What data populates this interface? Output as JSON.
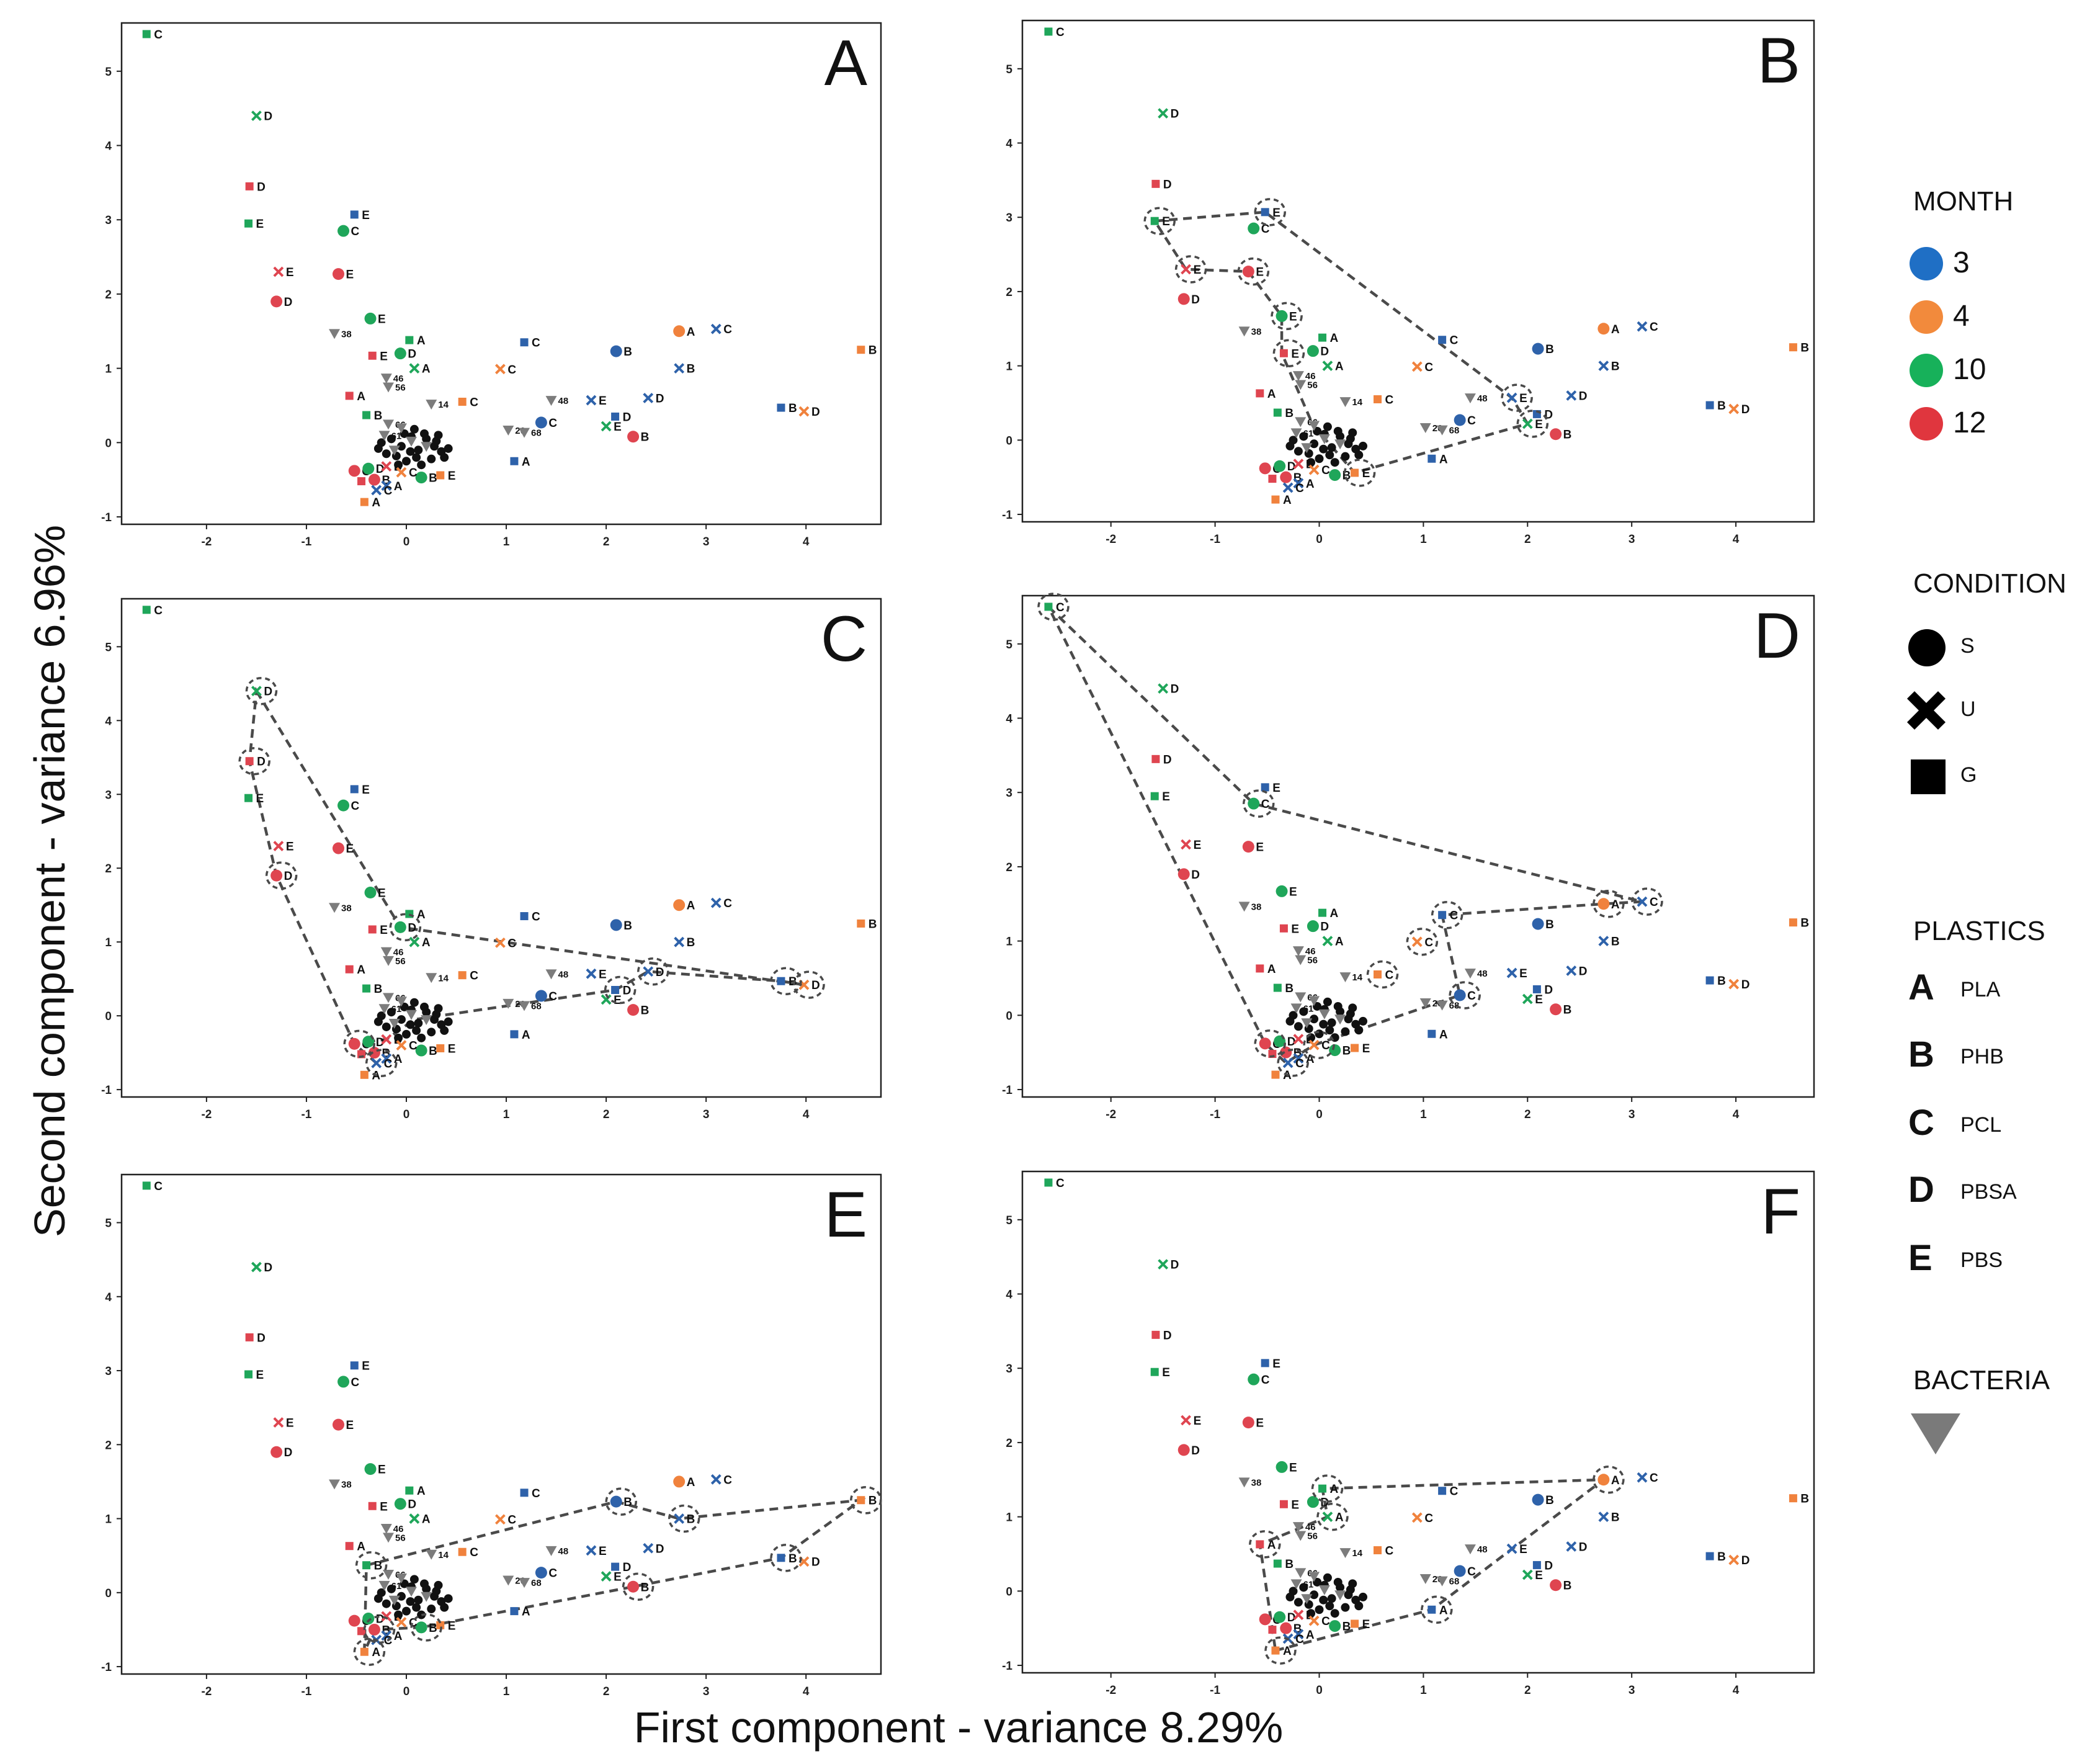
{
  "figure": {
    "xlabel": "First component - variance 8.29%",
    "ylabel": "Second component - variance 6.96%"
  },
  "colors": {
    "month_3": "#1f6fc5",
    "month_4": "#f28a3c",
    "month_10": "#17b15a",
    "month_12": "#e0363e",
    "pt_blue": "#2e62aa",
    "pt_orange": "#f0823d",
    "pt_green": "#1fa65a",
    "pt_red": "#df4550",
    "bacteria": "#7c7c7c",
    "hull": "#4a4a4a"
  },
  "legend": {
    "month_title": "MONTH",
    "months": [
      {
        "label": "3",
        "color": "#1f6fc5"
      },
      {
        "label": "4",
        "color": "#f28a3c"
      },
      {
        "label": "10",
        "color": "#17b15a"
      },
      {
        "label": "12",
        "color": "#e0363e"
      }
    ],
    "condition_title": "CONDITION",
    "conditions": [
      {
        "symbol": "circle",
        "label": "S"
      },
      {
        "symbol": "cross",
        "label": "U"
      },
      {
        "symbol": "square",
        "label": "G"
      }
    ],
    "plastics_title": "PLASTICS",
    "plastics": [
      {
        "letter": "A",
        "label": "PLA"
      },
      {
        "letter": "B",
        "label": "PHB"
      },
      {
        "letter": "C",
        "label": "PCL"
      },
      {
        "letter": "D",
        "label": "PBSA"
      },
      {
        "letter": "E",
        "label": "PBS"
      }
    ],
    "bacteria_title": "BACTERIA",
    "bacteria_icon": "triangle-down-icon"
  },
  "chart_data": {
    "type": "scatter",
    "panel_labels": [
      "A",
      "B",
      "C",
      "D",
      "E",
      "F"
    ],
    "xlim": [
      -2.85,
      4.75
    ],
    "ylim": [
      -1.1,
      5.65
    ],
    "xticks": [
      -2,
      -1,
      0,
      1,
      2,
      3,
      4
    ],
    "yticks": [
      -1,
      0,
      1,
      2,
      3,
      4,
      5
    ],
    "points": [
      {
        "x": -2.6,
        "y": 5.5,
        "month": 10,
        "cond": "G",
        "label": "C"
      },
      {
        "x": -1.5,
        "y": 4.4,
        "month": 10,
        "cond": "U",
        "label": "D"
      },
      {
        "x": -1.57,
        "y": 3.45,
        "month": 12,
        "cond": "G",
        "label": "D"
      },
      {
        "x": -1.58,
        "y": 2.95,
        "month": 10,
        "cond": "G",
        "label": "E"
      },
      {
        "x": -1.28,
        "y": 2.3,
        "month": 12,
        "cond": "U",
        "label": "E"
      },
      {
        "x": -1.3,
        "y": 1.9,
        "month": 12,
        "cond": "S",
        "label": "D"
      },
      {
        "x": -0.52,
        "y": 3.07,
        "month": 3,
        "cond": "G",
        "label": "E"
      },
      {
        "x": -0.63,
        "y": 2.85,
        "month": 10,
        "cond": "S",
        "label": "C"
      },
      {
        "x": -0.68,
        "y": 2.27,
        "month": 12,
        "cond": "S",
        "label": "E"
      },
      {
        "x": -0.36,
        "y": 1.67,
        "month": 10,
        "cond": "S",
        "label": "E"
      },
      {
        "x": 0.03,
        "y": 1.38,
        "month": 10,
        "cond": "G",
        "label": "A"
      },
      {
        "x": -0.06,
        "y": 1.2,
        "month": 10,
        "cond": "S",
        "label": "D"
      },
      {
        "x": -0.34,
        "y": 1.17,
        "month": 12,
        "cond": "G",
        "label": "E"
      },
      {
        "x": 0.08,
        "y": 1.0,
        "month": 10,
        "cond": "U",
        "label": "A"
      },
      {
        "x": -0.57,
        "y": 0.63,
        "month": 12,
        "cond": "G",
        "label": "A"
      },
      {
        "x": -0.4,
        "y": 0.37,
        "month": 10,
        "cond": "G",
        "label": "B"
      },
      {
        "x": 1.18,
        "y": 1.35,
        "month": 3,
        "cond": "G",
        "label": "C"
      },
      {
        "x": 0.94,
        "y": 0.99,
        "month": 4,
        "cond": "U",
        "label": "C"
      },
      {
        "x": 0.56,
        "y": 0.55,
        "month": 4,
        "cond": "G",
        "label": "C"
      },
      {
        "x": 2.1,
        "y": 1.23,
        "month": 3,
        "cond": "S",
        "label": "B"
      },
      {
        "x": 2.73,
        "y": 1.5,
        "month": 4,
        "cond": "S",
        "label": "A"
      },
      {
        "x": 3.1,
        "y": 1.53,
        "month": 3,
        "cond": "U",
        "label": "C"
      },
      {
        "x": 2.73,
        "y": 1.0,
        "month": 3,
        "cond": "U",
        "label": "B"
      },
      {
        "x": 4.55,
        "y": 1.25,
        "month": 4,
        "cond": "G",
        "label": "B"
      },
      {
        "x": 1.85,
        "y": 0.57,
        "month": 3,
        "cond": "U",
        "label": "E"
      },
      {
        "x": 2.42,
        "y": 0.6,
        "month": 3,
        "cond": "U",
        "label": "D"
      },
      {
        "x": 3.75,
        "y": 0.47,
        "month": 3,
        "cond": "G",
        "label": "B"
      },
      {
        "x": 3.98,
        "y": 0.42,
        "month": 4,
        "cond": "U",
        "label": "D"
      },
      {
        "x": 1.35,
        "y": 0.27,
        "month": 3,
        "cond": "S",
        "label": "C"
      },
      {
        "x": 2.09,
        "y": 0.35,
        "month": 3,
        "cond": "G",
        "label": "D"
      },
      {
        "x": 2.0,
        "y": 0.22,
        "month": 10,
        "cond": "U",
        "label": "E"
      },
      {
        "x": 2.27,
        "y": 0.08,
        "month": 12,
        "cond": "S",
        "label": "B"
      },
      {
        "x": 1.08,
        "y": -0.25,
        "month": 3,
        "cond": "G",
        "label": "A"
      },
      {
        "x": 0.15,
        "y": -0.47,
        "month": 10,
        "cond": "S",
        "label": "B"
      },
      {
        "x": 0.34,
        "y": -0.44,
        "month": 4,
        "cond": "G",
        "label": "E"
      },
      {
        "x": -0.52,
        "y": -0.38,
        "month": 12,
        "cond": "S",
        "label": "C"
      },
      {
        "x": -0.38,
        "y": -0.35,
        "month": 10,
        "cond": "S",
        "label": "D"
      },
      {
        "x": -0.2,
        "y": -0.32,
        "month": 12,
        "cond": "U",
        "label": "D"
      },
      {
        "x": -0.05,
        "y": -0.4,
        "month": 4,
        "cond": "U",
        "label": "C"
      },
      {
        "x": -0.45,
        "y": -0.52,
        "month": 12,
        "cond": "G",
        "label": ""
      },
      {
        "x": -0.32,
        "y": -0.5,
        "month": 12,
        "cond": "S",
        "label": "B"
      },
      {
        "x": -0.2,
        "y": -0.58,
        "month": 3,
        "cond": "U",
        "label": "A"
      },
      {
        "x": -0.3,
        "y": -0.64,
        "month": 3,
        "cond": "U",
        "label": "C"
      },
      {
        "x": -0.42,
        "y": -0.8,
        "month": 4,
        "cond": "G",
        "label": "A"
      }
    ],
    "bacteria": [
      {
        "x": -0.72,
        "y": 1.47,
        "label": "38"
      },
      {
        "x": -0.2,
        "y": 0.87,
        "label": "46"
      },
      {
        "x": -0.18,
        "y": 0.75,
        "label": "56"
      },
      {
        "x": 0.25,
        "y": 0.52,
        "label": "14"
      },
      {
        "x": 1.45,
        "y": 0.57,
        "label": "48"
      },
      {
        "x": 1.02,
        "y": 0.17,
        "label": "20"
      },
      {
        "x": 1.18,
        "y": 0.14,
        "label": "68"
      },
      {
        "x": -0.18,
        "y": 0.25,
        "label": "66"
      },
      {
        "x": -0.22,
        "y": 0.1,
        "label": "61"
      },
      {
        "x": -0.05,
        "y": 0.2,
        "label": ""
      },
      {
        "x": 0.05,
        "y": 0.02,
        "label": ""
      },
      {
        "x": 0.2,
        "y": -0.05,
        "label": ""
      },
      {
        "x": -0.12,
        "y": -0.1,
        "label": ""
      }
    ],
    "cluster": [
      [
        -0.25,
        0.0
      ],
      [
        -0.15,
        0.05
      ],
      [
        -0.05,
        -0.05
      ],
      [
        0.05,
        0.08
      ],
      [
        0.12,
        -0.1
      ],
      [
        0.2,
        0.05
      ],
      [
        0.28,
        -0.05
      ],
      [
        0.35,
        -0.12
      ],
      [
        -0.1,
        -0.18
      ],
      [
        0.0,
        -0.25
      ],
      [
        0.1,
        -0.2
      ],
      [
        -0.2,
        -0.15
      ],
      [
        0.18,
        0.12
      ],
      [
        0.3,
        0.02
      ],
      [
        0.38,
        -0.2
      ],
      [
        -0.02,
        0.12
      ],
      [
        0.08,
        0.18
      ],
      [
        0.25,
        -0.22
      ],
      [
        -0.28,
        -0.08
      ],
      [
        0.15,
        -0.3
      ],
      [
        0.42,
        -0.08
      ],
      [
        -0.08,
        -0.3
      ],
      [
        0.32,
        0.1
      ],
      [
        0.04,
        -0.12
      ]
    ],
    "cluster_labels": [
      {
        "x": 0.1,
        "y": -0.16,
        "label": "B"
      },
      {
        "x": 0.38,
        "y": -0.12,
        "label": "B"
      }
    ],
    "hulls": {
      "A": [],
      "B": [
        [
          -1.58,
          2.95
        ],
        [
          -0.52,
          3.07
        ],
        [
          1.85,
          0.57
        ],
        [
          2.0,
          0.22
        ],
        [
          0.34,
          -0.44
        ],
        [
          -0.06,
          0.2
        ],
        [
          -0.36,
          1.17
        ],
        [
          -0.36,
          1.67
        ],
        [
          -0.68,
          2.27
        ],
        [
          -1.28,
          2.3
        ]
      ],
      "C": [
        [
          -1.5,
          4.4
        ],
        [
          -0.06,
          1.2
        ],
        [
          3.98,
          0.42
        ],
        [
          3.75,
          0.47
        ],
        [
          2.42,
          0.6
        ],
        [
          2.09,
          0.35
        ],
        [
          0.08,
          -0.05
        ],
        [
          -0.2,
          -0.32
        ],
        [
          -0.38,
          -0.35
        ],
        [
          -0.3,
          -0.64
        ],
        [
          -0.52,
          -0.38
        ],
        [
          -1.3,
          1.9
        ],
        [
          -1.57,
          3.45
        ]
      ],
      "D": [
        [
          -2.6,
          5.5
        ],
        [
          -0.63,
          2.85
        ],
        [
          3.1,
          1.53
        ],
        [
          2.73,
          1.5
        ],
        [
          1.18,
          1.35
        ],
        [
          1.35,
          0.27
        ],
        [
          -0.05,
          -0.4
        ],
        [
          -0.32,
          -0.64
        ],
        [
          -0.52,
          -0.38
        ]
      ],
      "E": [
        [
          -0.4,
          0.37
        ],
        [
          2.1,
          1.23
        ],
        [
          2.73,
          1.0
        ],
        [
          4.55,
          1.25
        ],
        [
          3.75,
          0.47
        ],
        [
          2.27,
          0.08
        ],
        [
          0.15,
          -0.47
        ],
        [
          -0.32,
          -0.5
        ],
        [
          -0.42,
          -0.8
        ]
      ],
      "F": [
        [
          -0.42,
          -0.8
        ],
        [
          1.08,
          -0.25
        ],
        [
          2.73,
          1.5
        ],
        [
          0.03,
          1.38
        ],
        [
          0.08,
          1.0
        ],
        [
          -0.57,
          0.63
        ]
      ]
    },
    "circled": {
      "A": [],
      "B": [
        [
          -1.58,
          2.95
        ],
        [
          -0.52,
          3.07
        ],
        [
          -1.28,
          2.3
        ],
        [
          -0.68,
          2.27
        ],
        [
          -0.36,
          1.67
        ],
        [
          -0.34,
          1.17
        ],
        [
          1.85,
          0.57
        ],
        [
          2.0,
          0.22
        ],
        [
          0.34,
          -0.44
        ]
      ],
      "C": [
        [
          -1.5,
          4.4
        ],
        [
          -1.57,
          3.45
        ],
        [
          -1.3,
          1.9
        ],
        [
          -0.06,
          1.2
        ],
        [
          2.42,
          0.6
        ],
        [
          2.09,
          0.35
        ],
        [
          3.98,
          0.42
        ],
        [
          3.75,
          0.47
        ],
        [
          -0.52,
          -0.38
        ],
        [
          -0.3,
          -0.64
        ]
      ],
      "D": [
        [
          -2.6,
          5.5
        ],
        [
          -0.63,
          2.85
        ],
        [
          3.1,
          1.53
        ],
        [
          2.73,
          1.5
        ],
        [
          1.18,
          1.35
        ],
        [
          0.94,
          0.99
        ],
        [
          0.56,
          0.55
        ],
        [
          1.35,
          0.27
        ],
        [
          -0.52,
          -0.38
        ],
        [
          -0.3,
          -0.64
        ],
        [
          -0.05,
          -0.4
        ]
      ],
      "E": [
        [
          -0.4,
          0.37
        ],
        [
          2.1,
          1.23
        ],
        [
          2.73,
          1.0
        ],
        [
          4.55,
          1.25
        ],
        [
          3.75,
          0.47
        ],
        [
          2.27,
          0.08
        ],
        [
          0.15,
          -0.47
        ],
        [
          -0.42,
          -0.8
        ],
        [
          -0.32,
          -0.5
        ]
      ],
      "F": [
        [
          0.03,
          1.38
        ],
        [
          0.08,
          1.0
        ],
        [
          -0.57,
          0.63
        ],
        [
          1.08,
          -0.25
        ],
        [
          2.73,
          1.5
        ],
        [
          -0.42,
          -0.8
        ]
      ]
    }
  }
}
